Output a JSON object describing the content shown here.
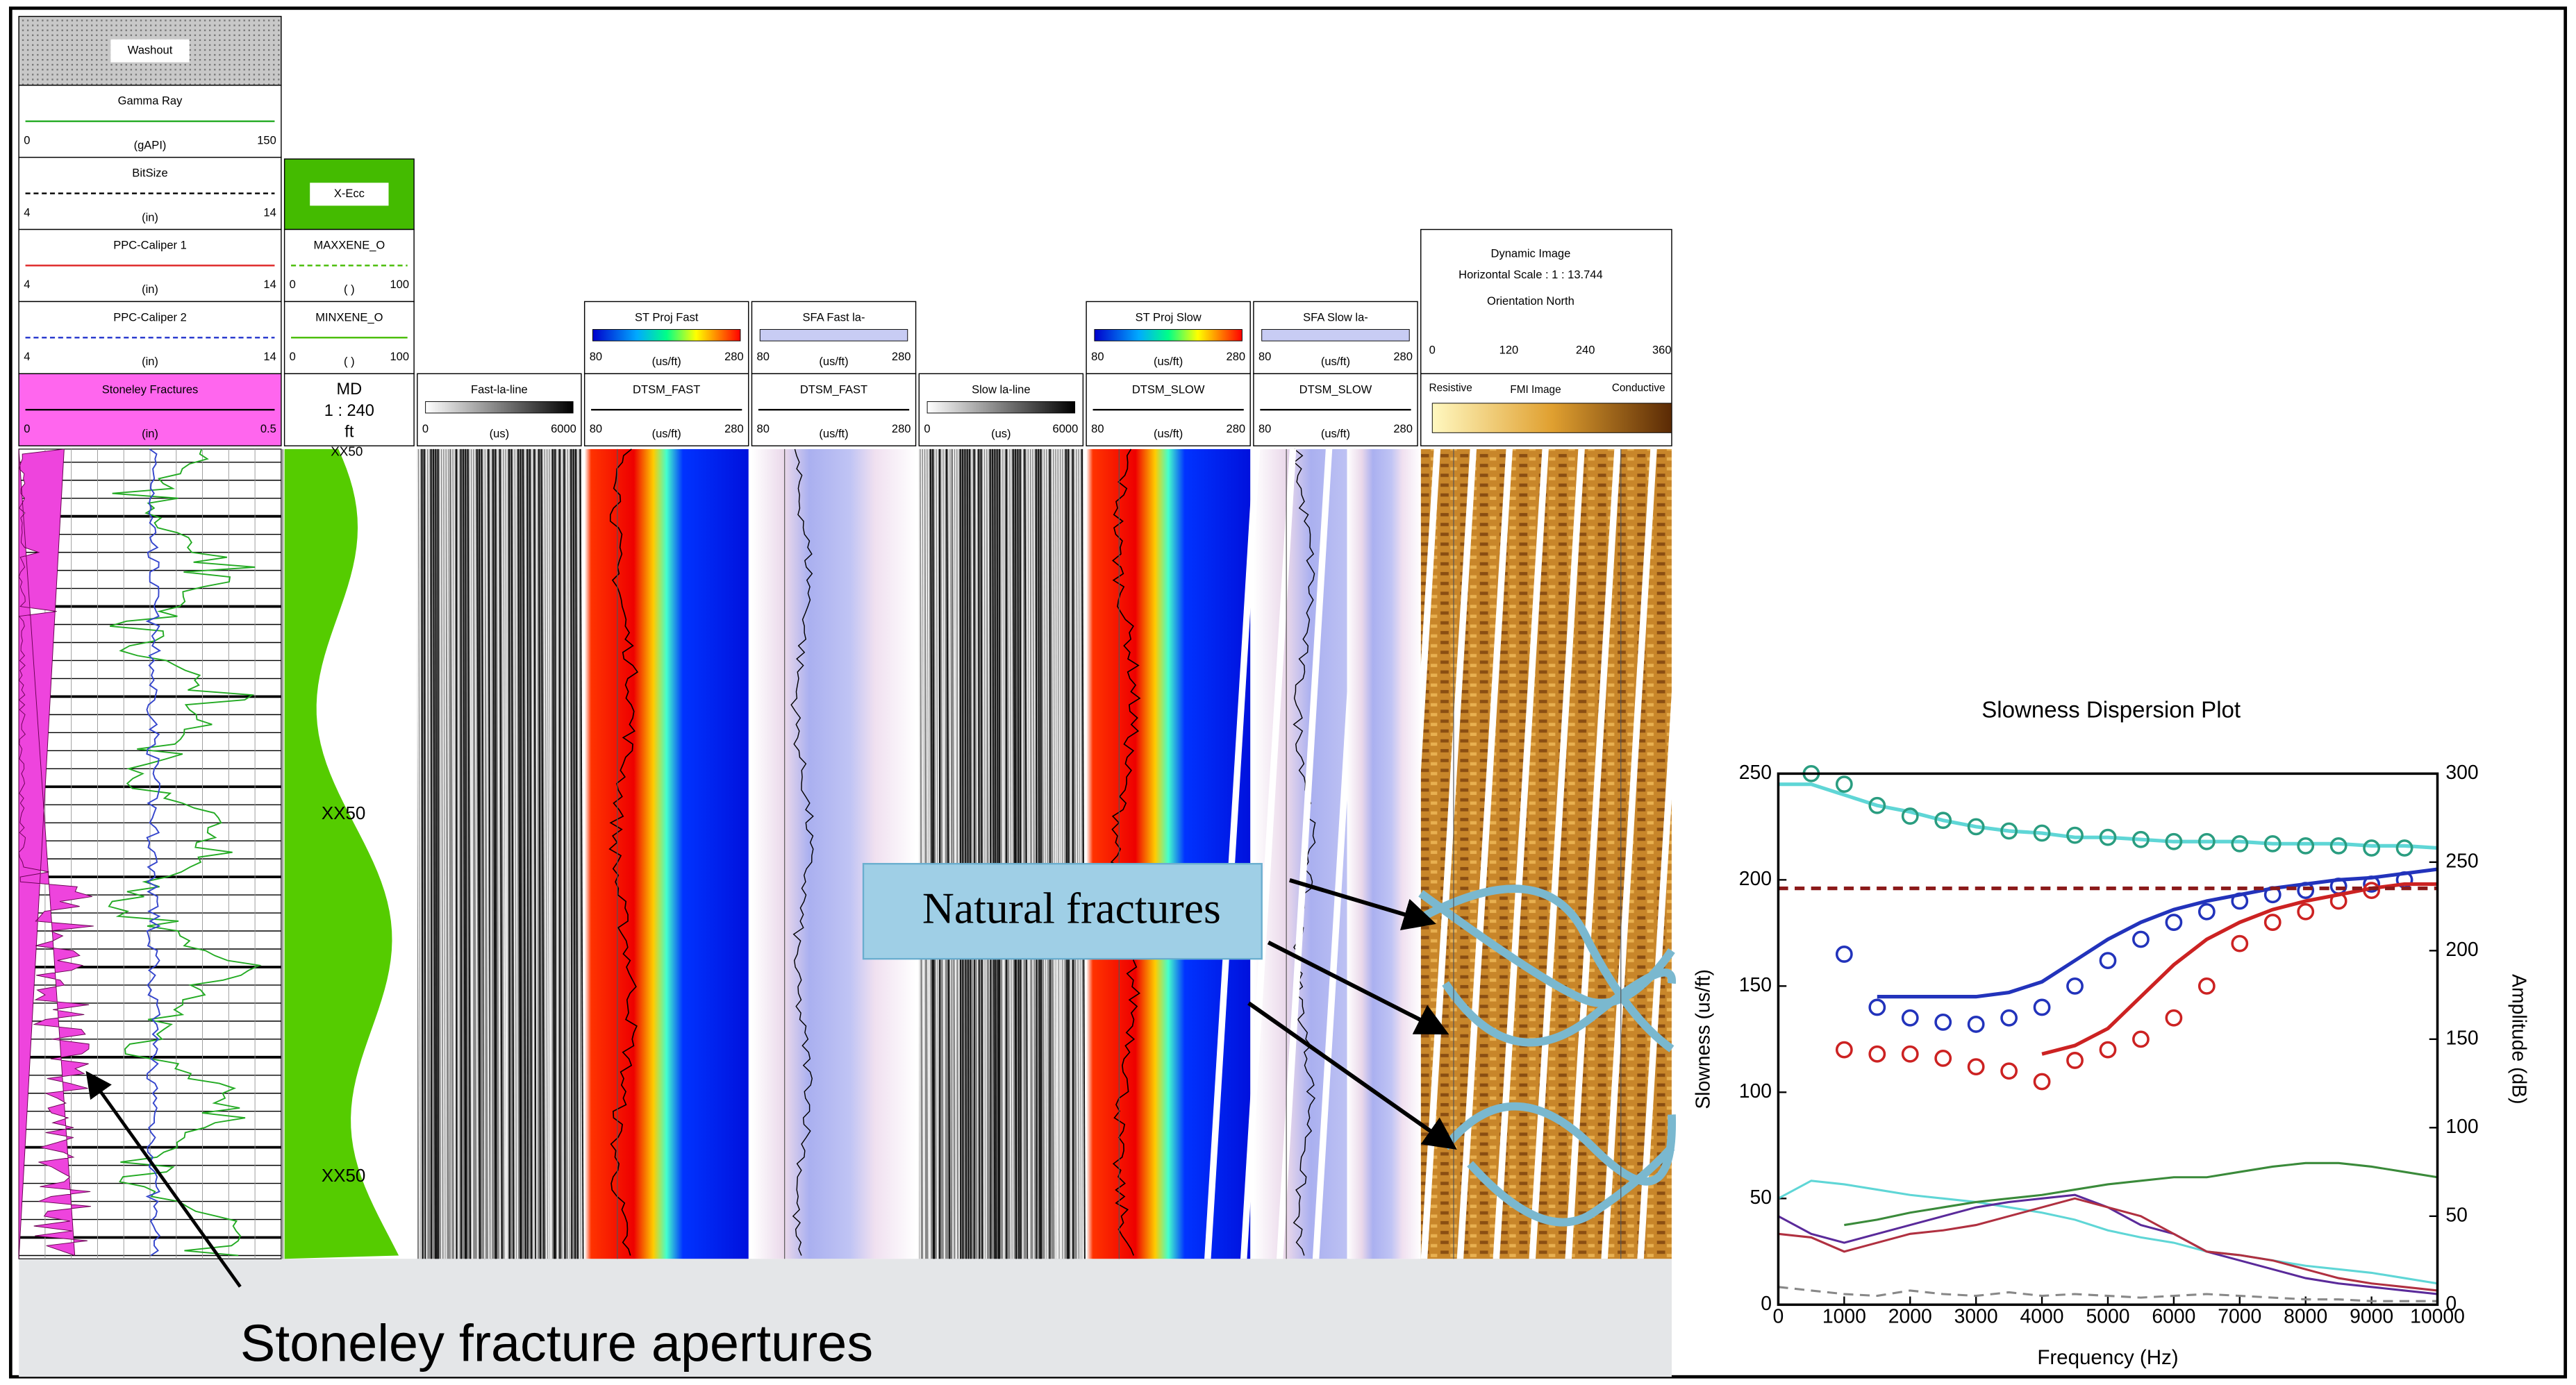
{
  "log_headers": [
    {
      "title": "Washout"
    },
    {
      "title": "Gamma Ray",
      "min": 0,
      "unit": "(gAPI)",
      "max": 150
    },
    {
      "title": "BitSize",
      "min": 4,
      "unit": "(in)",
      "max": 14
    },
    {
      "title": "PPC-Caliper 1",
      "min": 4,
      "unit": "(in)",
      "max": 14
    },
    {
      "title": "PPC-Caliper 2",
      "min": 4,
      "unit": "(in)",
      "max": 14
    },
    {
      "title": "Stoneley Fractures",
      "min": 0,
      "unit": "(in)",
      "max": 0.5
    },
    {
      "title": "X-Ecc"
    },
    {
      "title": "MAXXENE_O",
      "min": 0,
      "unit": "( )",
      "max": 100
    },
    {
      "title": "MINXENE_O",
      "min": 0,
      "unit": "( )",
      "max": 100
    },
    {
      "title": "MD",
      "scale": "1 : 240",
      "unit": "ft"
    },
    {
      "title": "Fast-la-line",
      "min": 0,
      "unit": "(us)",
      "max": 6000
    },
    {
      "title": "ST Proj Fast",
      "min": 80,
      "unit": "(us/ft)",
      "max": 280
    },
    {
      "title": "DTSM_FAST",
      "min": 80,
      "unit": "(us/ft)",
      "max": 280
    },
    {
      "title": "SFA Fast la-",
      "min": 80,
      "unit": "(us/ft)",
      "max": 280
    },
    {
      "title": "DTSM_FAST",
      "min": 80,
      "unit": "(us/ft)",
      "max": 280
    },
    {
      "title": "Slow la-line",
      "min": 0,
      "unit": "(us)",
      "max": 6000
    },
    {
      "title": "ST Proj Slow",
      "min": 80,
      "unit": "(us/ft)",
      "max": 280
    },
    {
      "title": "DTSM_SLOW",
      "min": 80,
      "unit": "(us/ft)",
      "max": 280
    },
    {
      "title": "SFA Slow la-",
      "min": 80,
      "unit": "(us/ft)",
      "max": 280
    },
    {
      "title": "DTSM_SLOW",
      "min": 80,
      "unit": "(us/ft)",
      "max": 280
    }
  ],
  "image_header": {
    "title": "Dynamic Image",
    "scale": "Horizontal Scale : 1 : 13.744",
    "orientation": "Orientation North",
    "ticks": [
      0,
      120,
      240,
      360
    ],
    "left": "Resistive",
    "center": "FMI Image",
    "right": "Conductive"
  },
  "depth_labels": [
    "XX50",
    "XX50",
    "XX50"
  ],
  "annotations": {
    "natural_fractures": "Natural fractures",
    "stoneley": "Stoneley fracture apertures"
  },
  "chart_data": {
    "type": "line",
    "title": "Slowness Dispersion Plot",
    "x_label": "Frequency (Hz)",
    "y_label": "Slowness (us/ft)",
    "y2_label": "Amplitude (dB)",
    "x": [
      0,
      500,
      1000,
      1500,
      2000,
      2500,
      3000,
      3500,
      4000,
      4500,
      5000,
      5500,
      6000,
      6500,
      7000,
      7500,
      8000,
      8500,
      9000,
      9500,
      10000
    ],
    "xlim": [
      0,
      10000
    ],
    "xticks": [
      0,
      1000,
      2000,
      3000,
      4000,
      5000,
      6000,
      7000,
      8000,
      9000,
      10000
    ],
    "ylim": [
      0,
      250
    ],
    "yticks": [
      0,
      50,
      100,
      150,
      200,
      250
    ],
    "y2lim": [
      0,
      300
    ],
    "y2ticks": [
      0,
      50,
      100,
      150,
      200,
      250,
      300
    ],
    "series": [
      {
        "color": "#5fd6d6",
        "mode": "lines",
        "values": [
          245,
          245,
          240,
          235,
          232,
          228,
          225,
          223,
          222,
          220,
          220,
          219,
          218,
          218,
          218,
          217,
          217,
          217,
          216,
          216,
          215
        ]
      },
      {
        "color": "#2a9d80",
        "mode": "markers",
        "values": [
          null,
          250,
          245,
          235,
          230,
          228,
          225,
          223,
          222,
          221,
          220,
          219,
          218,
          218,
          217,
          217,
          216,
          216,
          215,
          215,
          null
        ]
      },
      {
        "color": "#2233bb",
        "mode": "markers",
        "values": [
          null,
          null,
          165,
          140,
          135,
          133,
          132,
          135,
          140,
          150,
          162,
          172,
          180,
          185,
          190,
          193,
          195,
          197,
          198,
          200,
          null
        ]
      },
      {
        "color": "#2233bb",
        "mode": "lines",
        "values": [
          null,
          null,
          null,
          145,
          145,
          145,
          145,
          147,
          152,
          162,
          172,
          180,
          186,
          190,
          193,
          196,
          198,
          200,
          201,
          203,
          205
        ]
      },
      {
        "color": "#cc2222",
        "mode": "markers",
        "values": [
          null,
          null,
          120,
          118,
          118,
          116,
          112,
          110,
          105,
          115,
          120,
          125,
          135,
          150,
          170,
          180,
          185,
          190,
          195,
          null,
          null
        ]
      },
      {
        "color": "#cc2222",
        "mode": "lines",
        "values": [
          null,
          null,
          null,
          null,
          null,
          null,
          null,
          null,
          118,
          122,
          130,
          145,
          160,
          172,
          180,
          186,
          190,
          193,
          196,
          198,
          198
        ]
      },
      {
        "color": "#8b1a1a",
        "mode": "lines",
        "dash": true,
        "values": [
          196,
          196,
          196,
          196,
          196,
          196,
          196,
          196,
          196,
          196,
          196,
          196,
          196,
          196,
          196,
          196,
          196,
          196,
          196,
          196,
          196
        ]
      },
      {
        "color": "#5fd6d6",
        "mode": "lines",
        "axis": "y2",
        "values": [
          60,
          70,
          68,
          65,
          62,
          60,
          58,
          55,
          52,
          48,
          42,
          38,
          35,
          30,
          28,
          25,
          22,
          20,
          18,
          15,
          12
        ]
      },
      {
        "color": "#3a8a3a",
        "mode": "lines",
        "axis": "y2",
        "values": [
          null,
          null,
          45,
          48,
          52,
          55,
          58,
          60,
          62,
          65,
          68,
          70,
          72,
          72,
          75,
          78,
          80,
          80,
          78,
          75,
          72
        ]
      },
      {
        "color": "#5a2a9a",
        "mode": "lines",
        "axis": "y2",
        "values": [
          50,
          40,
          35,
          40,
          45,
          50,
          55,
          58,
          60,
          62,
          55,
          45,
          40,
          30,
          25,
          20,
          15,
          12,
          10,
          8,
          6
        ]
      },
      {
        "color": "#b03040",
        "mode": "lines",
        "axis": "y2",
        "values": [
          40,
          38,
          30,
          35,
          40,
          42,
          45,
          50,
          55,
          60,
          55,
          50,
          40,
          30,
          28,
          25,
          20,
          15,
          12,
          10,
          8
        ]
      },
      {
        "color": "#888888",
        "mode": "lines",
        "dash": true,
        "axis": "y2",
        "values": [
          10,
          8,
          6,
          5,
          8,
          6,
          5,
          7,
          5,
          6,
          5,
          4,
          5,
          6,
          5,
          4,
          3,
          3,
          2,
          2,
          2
        ]
      }
    ]
  }
}
